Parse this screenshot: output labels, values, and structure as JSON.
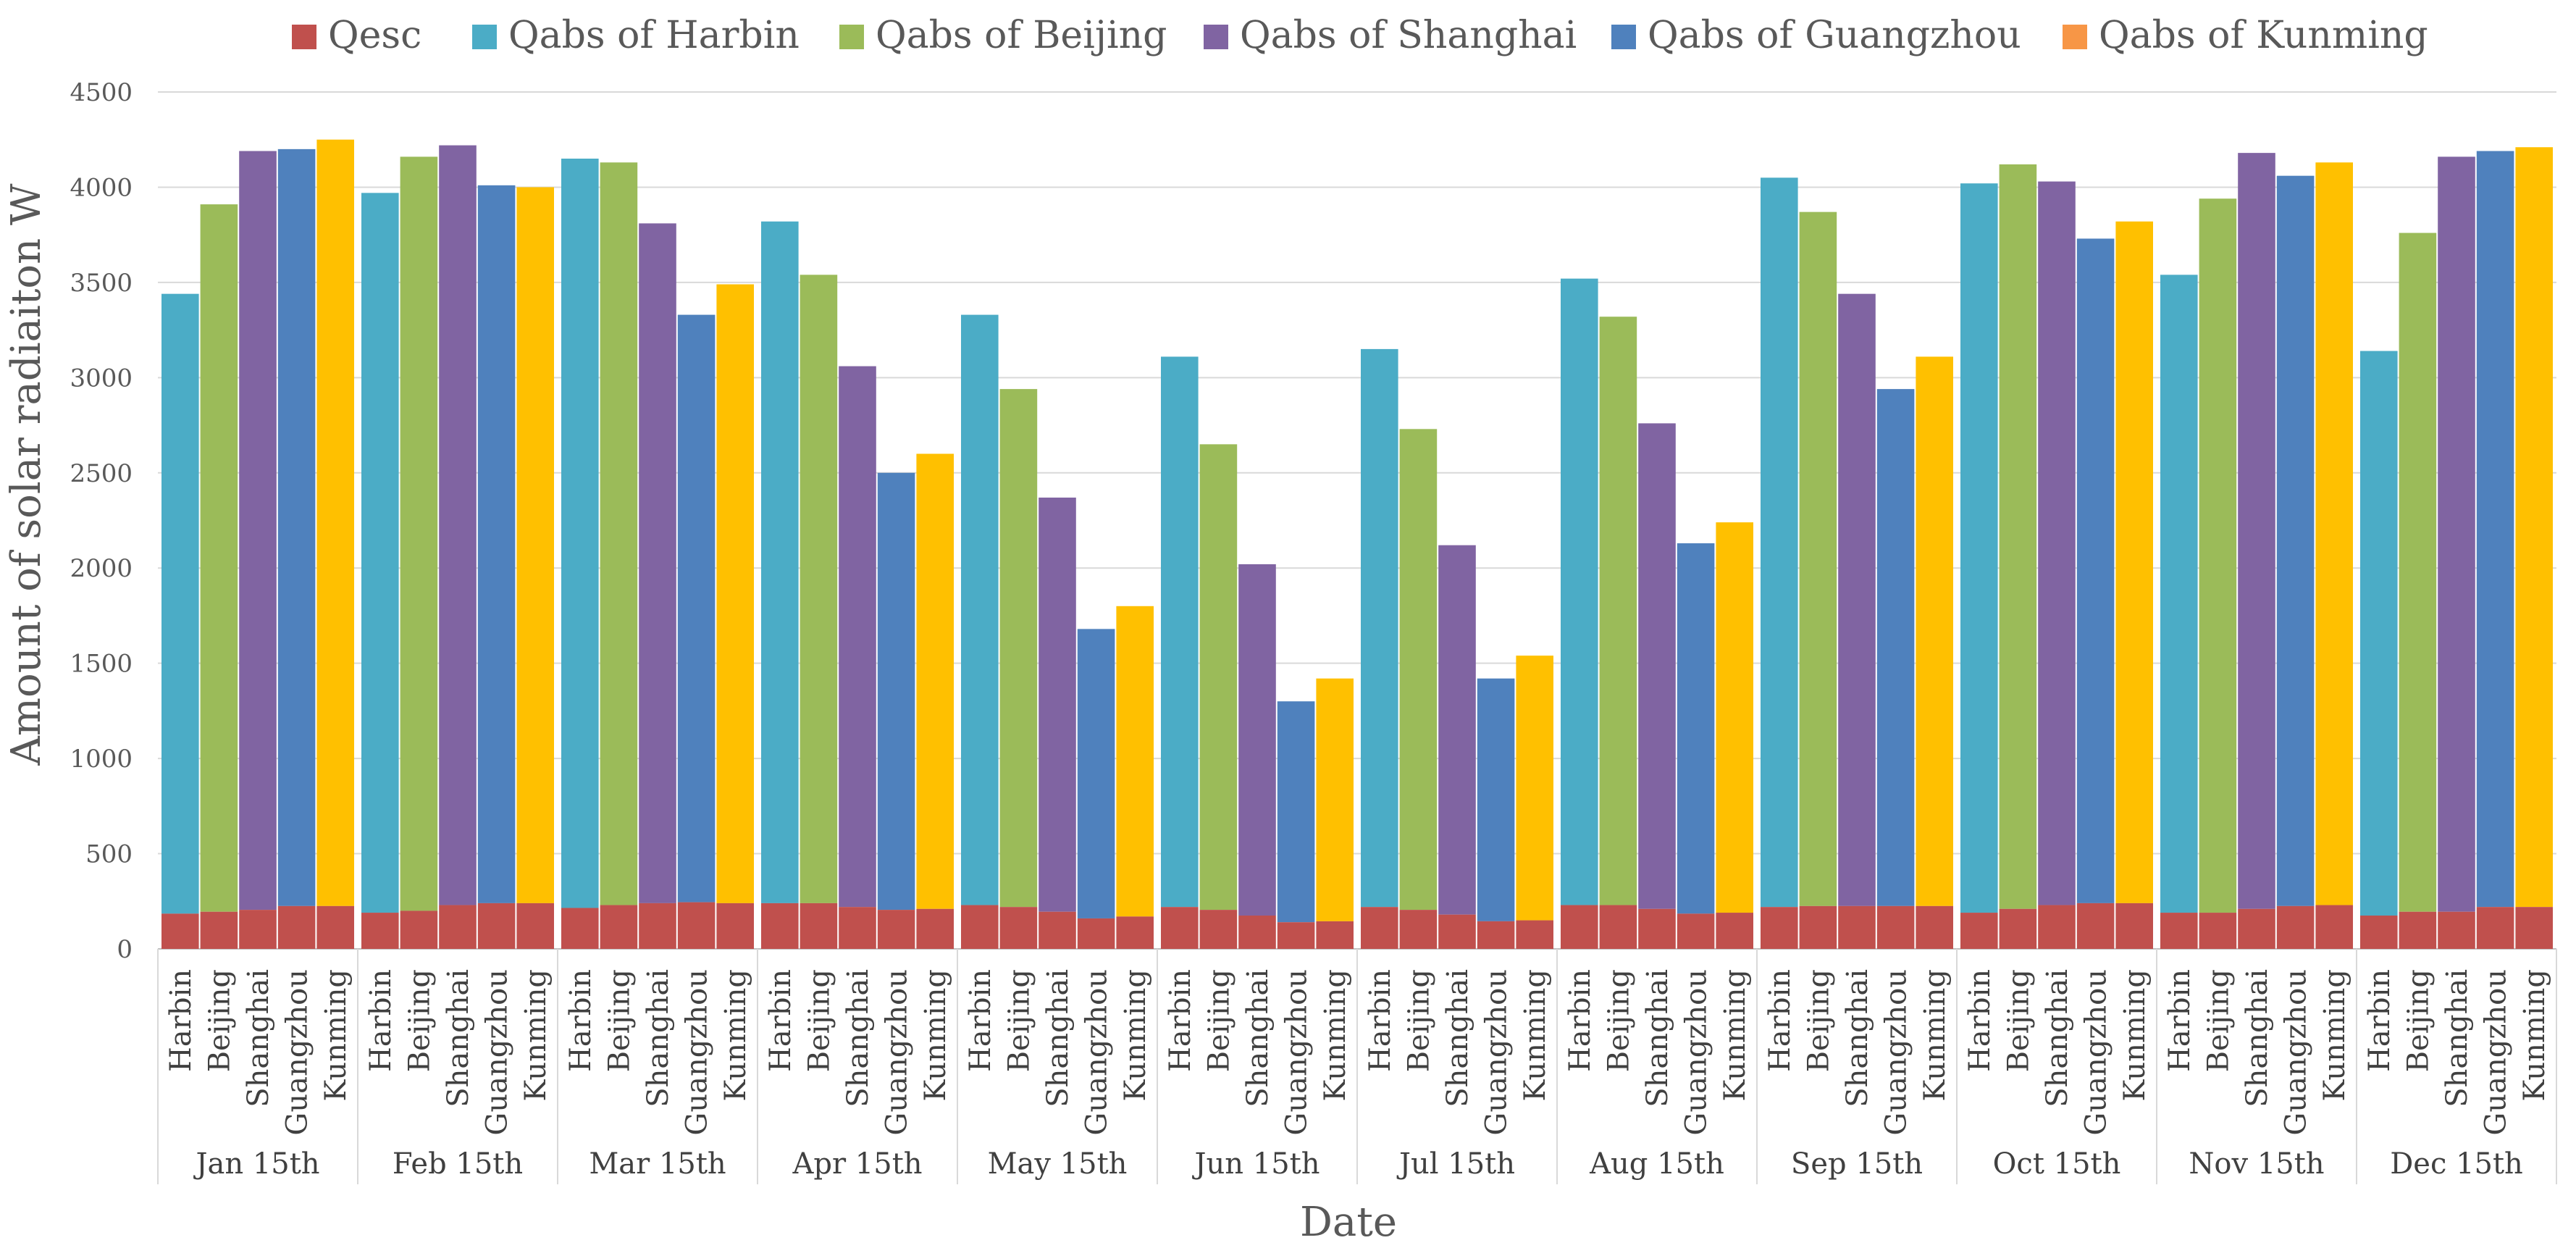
{
  "chart_data": {
    "type": "bar",
    "title": "",
    "xlabel": "Date",
    "ylabel": "Amount of solar radiaiton  W",
    "ylim": [
      0,
      4500
    ],
    "yticks": [
      0,
      500,
      1000,
      1500,
      2000,
      2500,
      3000,
      3500,
      4000,
      4500
    ],
    "grid": true,
    "legend_position": "top",
    "legend": [
      "Qesc",
      "Qabs of Harbin",
      "Qabs of Beijing",
      "Qabs of Shanghai",
      "Qabs of Guangzhou",
      "Qabs of Kunming"
    ],
    "colors": {
      "Qesc": "#c0504d",
      "Harbin": "#4bacc6",
      "Beijing": "#9bbb59",
      "Shanghai": "#8064a2",
      "Guangzhou": "#4f81bd",
      "Kunming": "#ffc000",
      "KunmingLegend": "#f79646"
    },
    "cities": [
      "Harbin",
      "Beijing",
      "Shanghai",
      "Guangzhou",
      "Kunming"
    ],
    "dates": [
      "Jan 15th",
      "Feb 15th",
      "Mar 15th",
      "Apr 15th",
      "May 15th",
      "Jun 15th",
      "Jul 15th",
      "Aug 15th",
      "Sep 15th",
      "Oct 15th",
      "Nov 15th",
      "Dec 15th"
    ],
    "totals": [
      [
        3440,
        3910,
        4190,
        4200,
        4250
      ],
      [
        3970,
        4160,
        4220,
        4010,
        4000
      ],
      [
        4150,
        4130,
        3810,
        3330,
        3490
      ],
      [
        3820,
        3540,
        3060,
        2500,
        2600
      ],
      [
        3330,
        2940,
        2370,
        1680,
        1800
      ],
      [
        3110,
        2650,
        2020,
        1300,
        1420
      ],
      [
        3150,
        2730,
        2120,
        1420,
        1540
      ],
      [
        3520,
        3320,
        2760,
        2130,
        2240
      ],
      [
        4050,
        3870,
        3440,
        2940,
        3110
      ],
      [
        4020,
        4120,
        4030,
        3730,
        3820
      ],
      [
        3540,
        3940,
        4180,
        4060,
        4130
      ],
      [
        3140,
        3760,
        4160,
        4190,
        4210
      ]
    ],
    "qesc": [
      [
        185,
        195,
        205,
        225,
        225
      ],
      [
        190,
        200,
        230,
        240,
        240
      ],
      [
        215,
        230,
        240,
        245,
        240
      ],
      [
        240,
        240,
        220,
        205,
        210
      ],
      [
        230,
        220,
        195,
        160,
        170
      ],
      [
        220,
        205,
        175,
        140,
        145
      ],
      [
        220,
        205,
        180,
        145,
        150
      ],
      [
        230,
        230,
        210,
        185,
        190
      ],
      [
        220,
        225,
        225,
        225,
        225
      ],
      [
        190,
        210,
        230,
        240,
        240
      ],
      [
        190,
        190,
        210,
        225,
        230
      ],
      [
        175,
        195,
        195,
        220,
        220
      ]
    ]
  }
}
